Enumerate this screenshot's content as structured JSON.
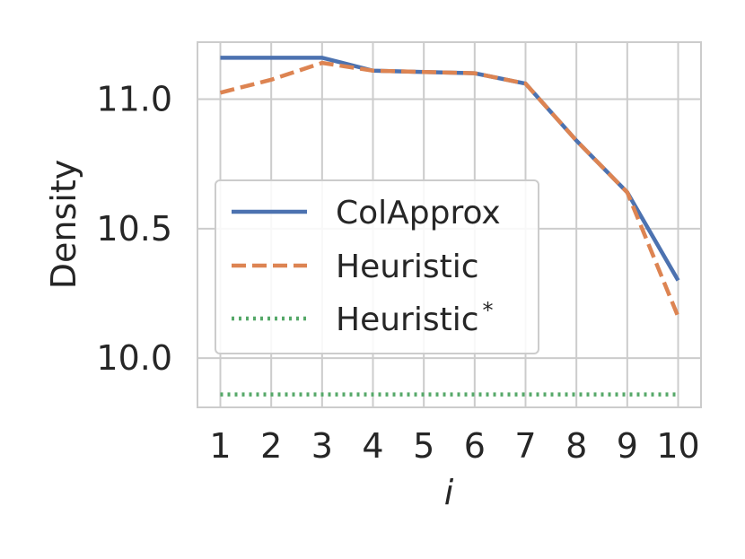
{
  "chart_data": {
    "type": "line",
    "xlabel": "i",
    "ylabel": "Density",
    "x": [
      1,
      2,
      3,
      4,
      5,
      6,
      7,
      8,
      9,
      10
    ],
    "x_ticks": [
      "1",
      "2",
      "3",
      "4",
      "5",
      "6",
      "7",
      "8",
      "9",
      "10"
    ],
    "y_ticks": [
      "10.0",
      "10.5",
      "11.0"
    ],
    "ylim": [
      9.81,
      11.22
    ],
    "xlim": [
      0.55,
      10.45
    ],
    "grid": true,
    "legend_position": "center-left",
    "series": [
      {
        "name": "ColApprox",
        "style": "solid",
        "color": "#4c72b0",
        "values": [
          11.16,
          11.16,
          11.16,
          11.11,
          11.105,
          11.1,
          11.06,
          10.84,
          10.64,
          10.3
        ]
      },
      {
        "name": "Heuristic",
        "style": "dashed",
        "color": "#dd8452",
        "values": [
          11.025,
          11.075,
          11.14,
          11.11,
          11.105,
          11.1,
          11.06,
          10.84,
          10.64,
          10.16
        ]
      },
      {
        "name": "Heuristic",
        "name_superscript": "*",
        "style": "dotted",
        "color": "#55a868",
        "values": [
          9.86,
          9.86,
          9.86,
          9.86,
          9.86,
          9.86,
          9.86,
          9.86,
          9.86,
          9.86
        ]
      }
    ]
  }
}
